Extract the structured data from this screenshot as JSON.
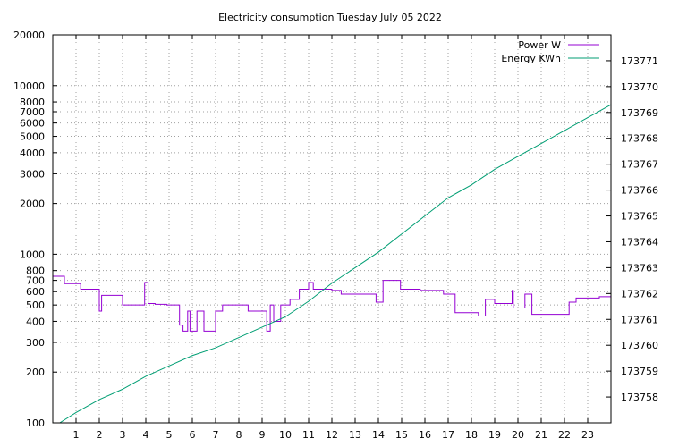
{
  "chart_data": {
    "type": "line",
    "title": "Electricity consumption Tuesday July 05 2022",
    "xlabel": "",
    "ylabel": "",
    "y2label": "",
    "grid": true,
    "legend_placement": "top-right",
    "x_ticks": [
      1,
      2,
      3,
      4,
      5,
      6,
      7,
      8,
      9,
      10,
      11,
      12,
      13,
      14,
      15,
      16,
      17,
      18,
      19,
      20,
      21,
      22,
      23
    ],
    "xlim": [
      0,
      24
    ],
    "y_scale": "log",
    "ylim": [
      100,
      20000
    ],
    "y_ticks": [
      100,
      200,
      300,
      400,
      500,
      600,
      700,
      800,
      1000,
      2000,
      3000,
      4000,
      5000,
      6000,
      7000,
      8000,
      10000,
      20000
    ],
    "y2lim": [
      173757,
      173772
    ],
    "y2_ticks": [
      173758,
      173759,
      173760,
      173761,
      173762,
      173763,
      173764,
      173765,
      173766,
      173767,
      173768,
      173769,
      173770,
      173771
    ],
    "series": [
      {
        "name": "Power W",
        "axis": "y",
        "color": "#9400d3",
        "step": true,
        "x": [
          0,
          0.3,
          0.5,
          0.8,
          1.2,
          1.6,
          1.9,
          2.0,
          2.1,
          2.25,
          2.4,
          2.9,
          3.0,
          3.5,
          3.9,
          3.95,
          4.1,
          4.2,
          4.4,
          4.9,
          5.2,
          5.45,
          5.6,
          5.8,
          5.9,
          6.1,
          6.2,
          6.35,
          6.5,
          6.9,
          7.0,
          7.3,
          7.5,
          8.0,
          8.4,
          8.9,
          9.2,
          9.35,
          9.5,
          9.8,
          10.2,
          10.6,
          11.0,
          11.2,
          11.3,
          11.5,
          11.8,
          12.0,
          12.4,
          12.9,
          13.3,
          13.9,
          14.2,
          14.35,
          14.5,
          14.6,
          14.95,
          15.3,
          15.8,
          16.2,
          16.8,
          17.3,
          17.6,
          18.3,
          18.6,
          19.0,
          19.6,
          19.75,
          19.8,
          20.1,
          20.3,
          20.6,
          20.8,
          21.0,
          21.4,
          21.9,
          22.2,
          22.5,
          23.0,
          23.5,
          24.0
        ],
        "values": [
          740,
          740,
          670,
          670,
          620,
          620,
          620,
          460,
          570,
          570,
          570,
          570,
          500,
          500,
          500,
          680,
          510,
          510,
          505,
          500,
          500,
          380,
          350,
          460,
          350,
          350,
          460,
          460,
          350,
          350,
          460,
          500,
          500,
          500,
          460,
          460,
          350,
          500,
          400,
          500,
          540,
          620,
          680,
          620,
          620,
          620,
          620,
          610,
          580,
          580,
          580,
          520,
          700,
          700,
          700,
          700,
          620,
          620,
          610,
          610,
          580,
          450,
          450,
          430,
          540,
          510,
          510,
          610,
          480,
          480,
          580,
          440,
          440,
          440,
          440,
          440,
          520,
          550,
          550,
          560,
          570
        ]
      },
      {
        "name": "Energy KWh",
        "axis": "y2",
        "color": "#009e73",
        "step": false,
        "x": [
          0.3,
          1.0,
          2.0,
          3.0,
          4.0,
          5.0,
          6.0,
          7.0,
          8.0,
          9.0,
          10.0,
          11.0,
          12.0,
          13.0,
          14.0,
          15.0,
          16.0,
          17.0,
          18.0,
          19.0,
          20.0,
          21.0,
          22.0,
          23.0,
          24.0
        ],
        "values": [
          173757.0,
          173757.4,
          173757.9,
          173758.3,
          173758.8,
          173759.2,
          173759.6,
          173759.9,
          173760.3,
          173760.7,
          173761.1,
          173761.7,
          173762.4,
          173763.0,
          173763.6,
          173764.3,
          173765.0,
          173765.7,
          173766.2,
          173766.8,
          173767.3,
          173767.8,
          173768.3,
          173768.8,
          173769.3
        ]
      }
    ]
  }
}
